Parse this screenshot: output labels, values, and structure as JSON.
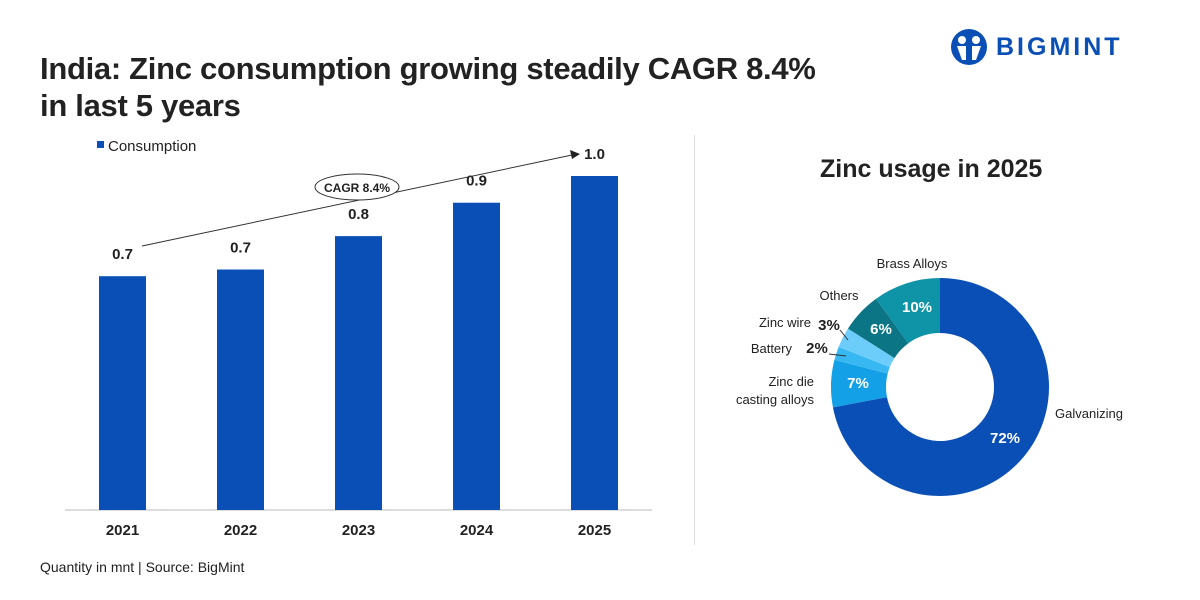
{
  "title_line1": "India: Zinc consumption growing steadily CAGR 8.4%",
  "title_line2": "in last 5 years",
  "logo_text": "BIGMINT",
  "source": "Quantity in mnt | Source: BigMint",
  "chart_data": [
    {
      "type": "bar",
      "categories": [
        "2021",
        "2022",
        "2023",
        "2024",
        "2025"
      ],
      "series": [
        {
          "name": "Consumption",
          "values": [
            0.7,
            0.72,
            0.82,
            0.92,
            1.0
          ],
          "labels": [
            "0.7",
            "0.7",
            "0.8",
            "0.9",
            "1.0"
          ]
        }
      ],
      "ylim": [
        0,
        1.0
      ],
      "color": "#0a4fb5",
      "legend": "top-left",
      "annotation": "CAGR 8.4%",
      "grid": false
    },
    {
      "type": "pie",
      "title": "Zinc usage in 2025",
      "donut": true,
      "slices": [
        {
          "label": "Galvanizing",
          "value": 72,
          "text": "72%",
          "color": "#0a4fb5"
        },
        {
          "label": "Zinc die casting alloys",
          "value": 7,
          "text": "7%",
          "color": "#14a0e6"
        },
        {
          "label": "Battery",
          "value": 2,
          "text": "2%",
          "color": "#38b8f2"
        },
        {
          "label": "Zinc wire",
          "value": 3,
          "text": "3%",
          "color": "#6dcdfa"
        },
        {
          "label": "Others",
          "value": 6,
          "text": "6%",
          "color": "#0b7585"
        },
        {
          "label": "Brass Alloys",
          "value": 10,
          "text": "10%",
          "color": "#0f93a6"
        }
      ]
    }
  ]
}
